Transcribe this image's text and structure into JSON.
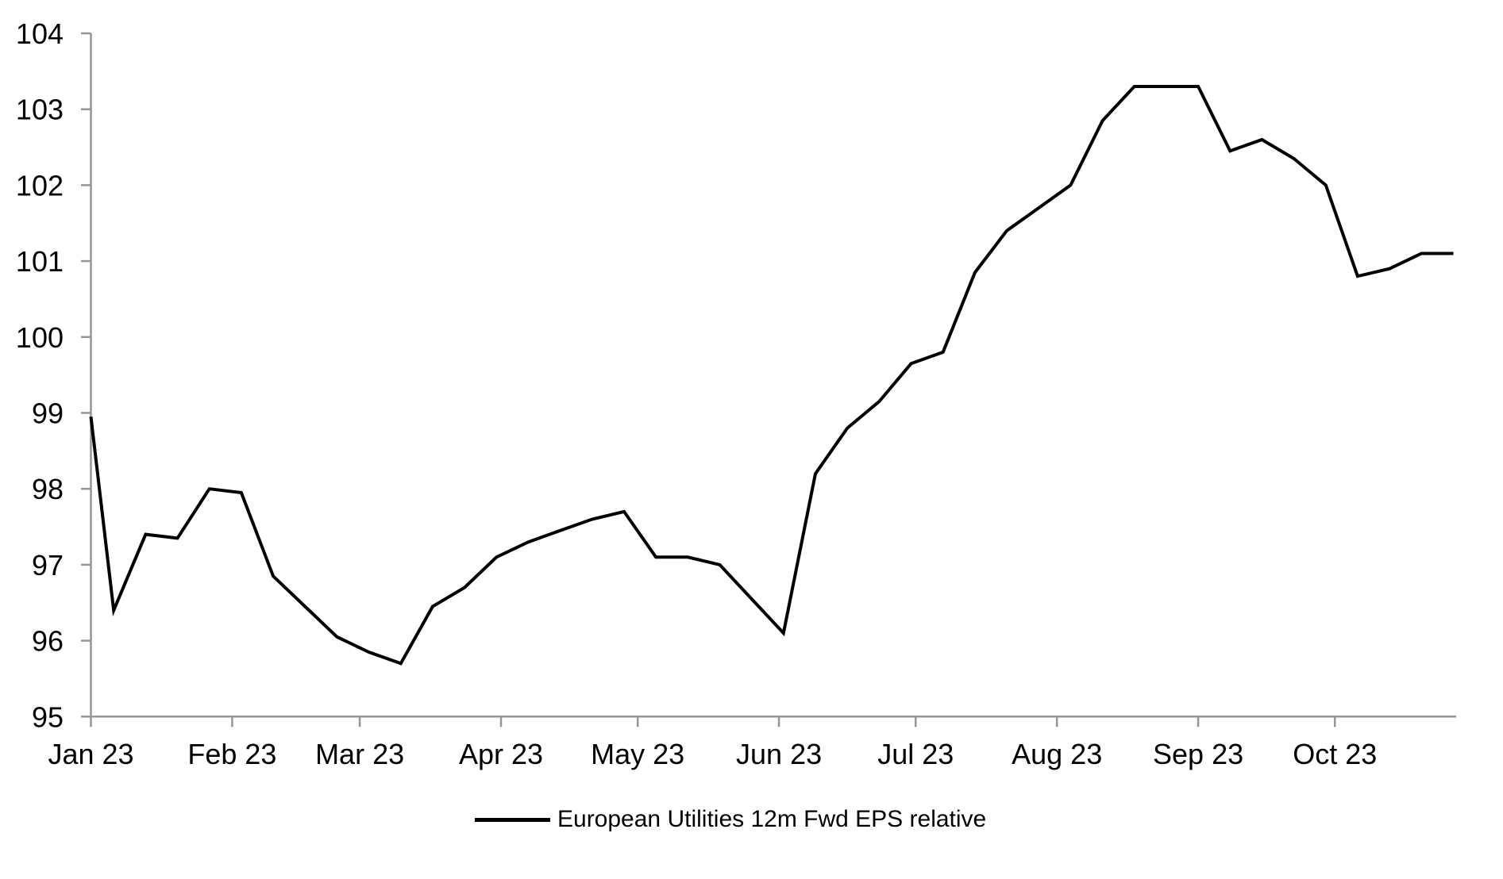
{
  "chart_data": {
    "type": "line",
    "title": "",
    "x_axis": {
      "unit": "date",
      "ticks": [
        {
          "date": "2023-01-01",
          "label": "Jan 23"
        },
        {
          "date": "2023-02-01",
          "label": "Feb 23"
        },
        {
          "date": "2023-03-01",
          "label": "Mar 23"
        },
        {
          "date": "2023-04-01",
          "label": "Apr 23"
        },
        {
          "date": "2023-05-01",
          "label": "May 23"
        },
        {
          "date": "2023-06-01",
          "label": "Jun 23"
        },
        {
          "date": "2023-07-01",
          "label": "Jul 23"
        },
        {
          "date": "2023-08-01",
          "label": "Aug 23"
        },
        {
          "date": "2023-09-01",
          "label": "Sep 23"
        },
        {
          "date": "2023-10-01",
          "label": "Oct 23"
        }
      ]
    },
    "y_axis": {
      "min": 95,
      "max": 104,
      "step": 1,
      "tick_labels": [
        "95",
        "96",
        "97",
        "98",
        "99",
        "100",
        "101",
        "102",
        "103",
        "104"
      ]
    },
    "grid": false,
    "legend_position": "bottom-center",
    "axis_color": "#969696",
    "series": [
      {
        "name": "European Utilities 12m Fwd EPS relative",
        "color": "#000000",
        "dates": [
          "2023-01-01",
          "2023-01-06",
          "2023-01-13",
          "2023-01-20",
          "2023-01-27",
          "2023-02-03",
          "2023-02-10",
          "2023-02-17",
          "2023-02-24",
          "2023-03-03",
          "2023-03-10",
          "2023-03-17",
          "2023-03-24",
          "2023-03-31",
          "2023-04-07",
          "2023-04-14",
          "2023-04-21",
          "2023-04-28",
          "2023-05-05",
          "2023-05-12",
          "2023-05-19",
          "2023-05-26",
          "2023-06-02",
          "2023-06-09",
          "2023-06-16",
          "2023-06-23",
          "2023-06-30",
          "2023-07-07",
          "2023-07-14",
          "2023-07-21",
          "2023-07-28",
          "2023-08-04",
          "2023-08-11",
          "2023-08-18",
          "2023-08-25",
          "2023-09-01",
          "2023-09-08",
          "2023-09-15",
          "2023-09-22",
          "2023-09-29",
          "2023-10-06",
          "2023-10-13",
          "2023-10-20",
          "2023-10-27"
        ],
        "values": [
          98.95,
          96.4,
          97.4,
          97.35,
          98.0,
          97.95,
          96.85,
          96.45,
          96.05,
          95.85,
          95.7,
          96.45,
          96.7,
          97.1,
          97.3,
          97.45,
          97.6,
          97.7,
          97.1,
          97.1,
          97.0,
          96.55,
          96.1,
          98.2,
          98.8,
          99.15,
          99.65,
          99.8,
          100.85,
          101.4,
          101.7,
          102.0,
          102.85,
          103.3,
          103.3,
          103.3,
          102.45,
          102.6,
          102.35,
          102.0,
          100.8,
          100.9,
          101.1,
          101.1
        ]
      }
    ]
  },
  "legend": {
    "label": "European Utilities 12m Fwd EPS relative"
  }
}
